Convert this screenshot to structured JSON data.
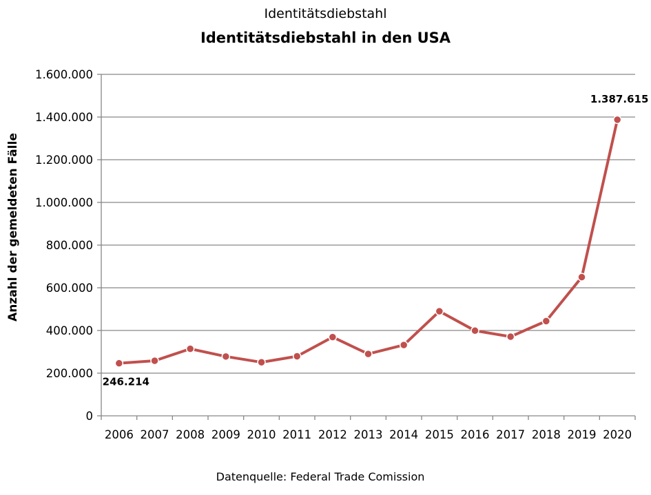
{
  "chart_data": {
    "type": "line",
    "title": "Identitätsdiebstahl",
    "subtitle": "Identitätsdiebstahl in den USA",
    "xlabel": "",
    "ylabel": "Anzahl der gemeldeten Fälle",
    "source": "Datenquelle: Federal Trade Comission",
    "categories": [
      "2006",
      "2007",
      "2008",
      "2009",
      "2010",
      "2011",
      "2012",
      "2013",
      "2014",
      "2015",
      "2016",
      "2017",
      "2018",
      "2019",
      "2020"
    ],
    "series": [
      {
        "values": [
          246214,
          258000,
          314000,
          278000,
          251000,
          279000,
          369000,
          290000,
          332000,
          490000,
          399000,
          371000,
          444000,
          650000,
          1387615
        ],
        "color": "#c0504d"
      }
    ],
    "ylim": [
      0,
      1600000
    ],
    "yticks": [
      0,
      200000,
      400000,
      600000,
      800000,
      1000000,
      1200000,
      1400000,
      1600000
    ],
    "ytick_labels": [
      "0",
      "200.000",
      "400.000",
      "600.000",
      "800.000",
      "1.000.000",
      "1.200.000",
      "1.400.000",
      "1.600.000"
    ],
    "data_labels": [
      {
        "index": 0,
        "text": "246.214"
      },
      {
        "index": 14,
        "text": "1.387.615"
      }
    ],
    "grid": true,
    "legend": "none"
  }
}
